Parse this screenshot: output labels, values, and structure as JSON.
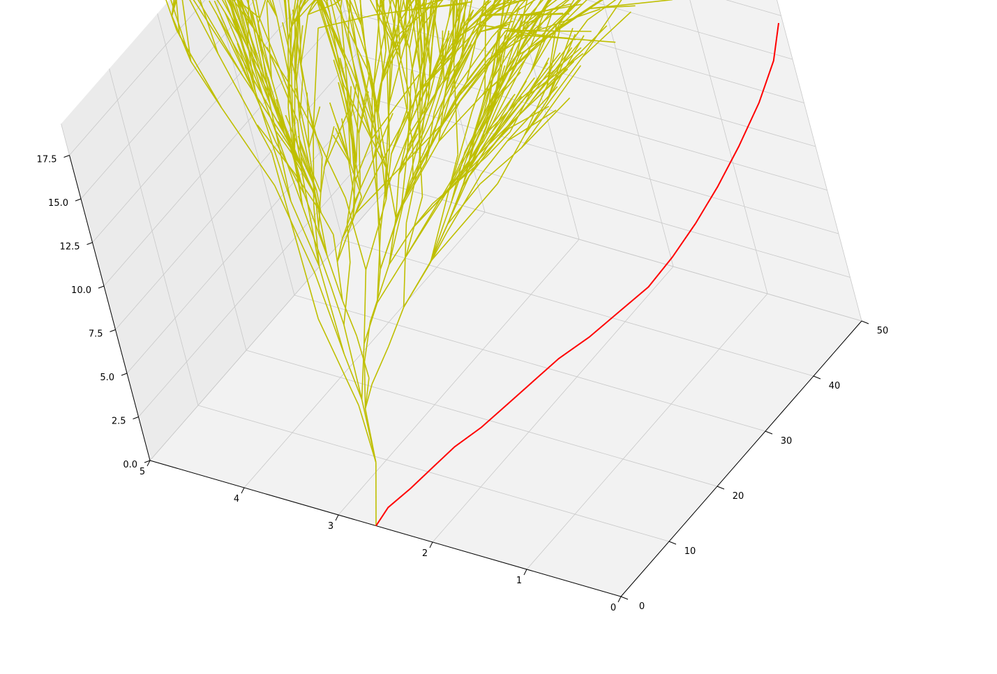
{
  "chart_data": {
    "type": "line",
    "projection": "3d",
    "title": "",
    "xlabel": "",
    "ylabel": "",
    "zlabel": "",
    "xlim": [
      0,
      5
    ],
    "ylim": [
      0,
      50
    ],
    "zlim": [
      0,
      17.5
    ],
    "x_ticks": [
      "0",
      "1",
      "2",
      "3",
      "4",
      "5"
    ],
    "y_ticks": [
      "0",
      "10",
      "20",
      "30",
      "40",
      "50"
    ],
    "z_ticks": [
      "0.0",
      "2.5",
      "5.0",
      "7.5",
      "10.0",
      "12.5",
      "15.0",
      "17.5"
    ],
    "grid": true,
    "pane_color": "#f2f2f2",
    "grid_color": "#c8c8c8",
    "series": [
      {
        "role": "branches",
        "color": "#bfbf00",
        "line_count": 1000,
        "generator": "random branching tree rooted at (2.6, 0, 0) growing toward y = 50"
      },
      {
        "role": "highlighted-path",
        "color": "#ff0000",
        "points": [
          [
            2.6,
            0,
            0
          ],
          [
            2.55,
            2,
            0.5
          ],
          [
            2.45,
            5,
            0.8
          ],
          [
            2.35,
            8,
            1.2
          ],
          [
            2.25,
            11,
            1.6
          ],
          [
            2.1,
            14,
            2.0
          ],
          [
            1.95,
            17,
            2.6
          ],
          [
            1.8,
            20,
            3.2
          ],
          [
            1.65,
            23,
            3.8
          ],
          [
            1.45,
            26,
            4.4
          ],
          [
            1.25,
            29,
            5.2
          ],
          [
            1.05,
            32,
            6.0
          ],
          [
            0.9,
            35,
            7.0
          ],
          [
            0.75,
            38,
            8.2
          ],
          [
            0.6,
            41,
            9.6
          ],
          [
            0.45,
            44,
            11.2
          ],
          [
            0.3,
            47,
            13.0
          ],
          [
            0.15,
            49,
            15.0
          ],
          [
            0.05,
            50,
            17.0
          ]
        ]
      }
    ]
  }
}
